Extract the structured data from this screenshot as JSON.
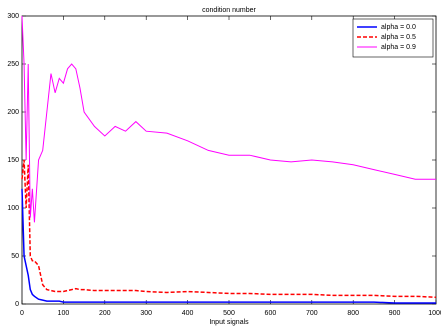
{
  "chart_data": {
    "type": "line",
    "title": "condition number",
    "x_label": "Input signals",
    "x": [
      0,
      5,
      10,
      15,
      20,
      25,
      30,
      40,
      50,
      60,
      70,
      80,
      90,
      100,
      110,
      120,
      130,
      140,
      150,
      175,
      200,
      225,
      250,
      275,
      300,
      350,
      400,
      450,
      500,
      550,
      600,
      650,
      700,
      750,
      800,
      850,
      900,
      950,
      1000
    ],
    "series": [
      {
        "name": "alpha = 0.0",
        "color": "#0000ff",
        "linestyle": "solid",
        "linewidth": 1.5,
        "values": [
          120,
          50,
          40,
          30,
          15,
          10,
          8,
          5,
          4,
          3,
          3,
          3,
          3,
          2,
          2,
          2,
          2,
          2,
          2,
          2,
          2,
          2,
          2,
          2,
          2,
          2,
          2,
          2,
          2,
          2,
          2,
          2,
          2,
          2,
          2,
          2,
          1,
          1,
          1
        ]
      },
      {
        "name": "alpha = 0.5",
        "color": "#ff0000",
        "linestyle": "dashed",
        "linewidth": 1.5,
        "values": [
          130,
          150,
          100,
          145,
          50,
          45,
          45,
          40,
          20,
          15,
          14,
          13,
          13,
          13,
          14,
          15,
          16,
          15,
          15,
          14,
          14,
          14,
          14,
          14,
          13,
          12,
          13,
          12,
          11,
          11,
          10,
          10,
          10,
          9,
          9,
          9,
          8,
          8,
          7
        ]
      },
      {
        "name": "alpha = 0.9",
        "color": "#ff00ff",
        "linestyle": "solid",
        "linewidth": 1,
        "values": [
          300,
          250,
          150,
          250,
          90,
          120,
          85,
          150,
          160,
          200,
          240,
          220,
          235,
          230,
          245,
          250,
          245,
          225,
          200,
          185,
          175,
          185,
          180,
          190,
          180,
          178,
          170,
          160,
          155,
          155,
          150,
          148,
          150,
          148,
          145,
          140,
          135,
          130,
          130
        ]
      }
    ],
    "xlim": [
      0,
      1000
    ],
    "ylim": [
      0,
      300
    ],
    "xticks": [
      0,
      100,
      200,
      300,
      400,
      500,
      600,
      700,
      800,
      900,
      1000
    ],
    "yticks": [
      0,
      50,
      100,
      150,
      200,
      250,
      300
    ],
    "grid": false,
    "legend": "upper right"
  }
}
